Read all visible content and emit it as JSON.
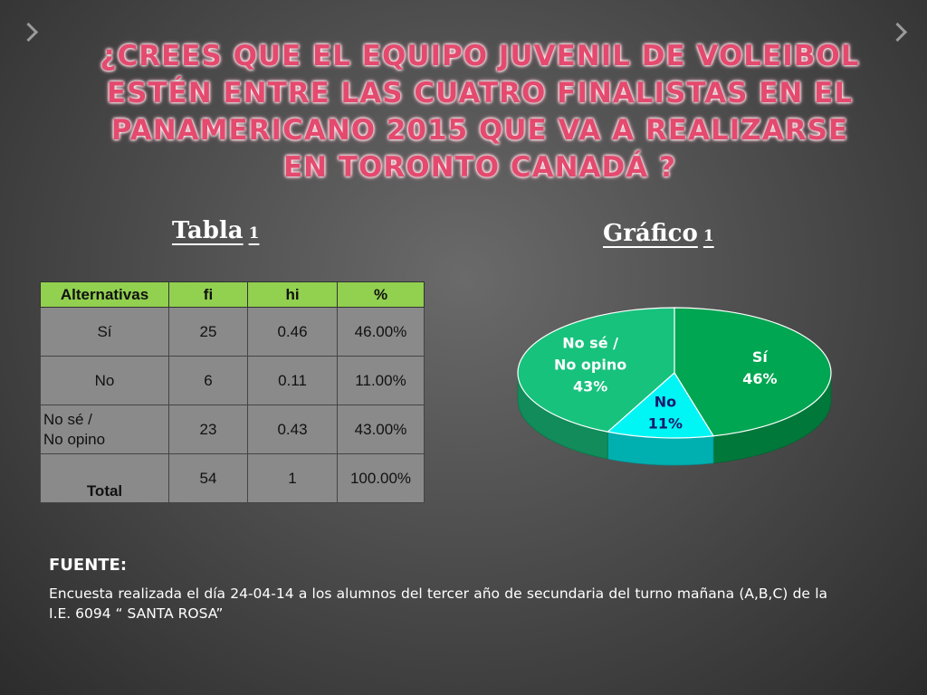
{
  "slide": {
    "title": "¿Crees que el equipo juvenil de voleibol estén entre las cuatro finalistas en el Panamericano 2015 que va a realizarse en Toronto Canadá ?",
    "tabla_label": "Tabla",
    "tabla_num": "1",
    "grafico_label": "Gráfico",
    "grafico_num": "1"
  },
  "table": {
    "headers": [
      "Alternativas",
      "fi",
      "hi",
      "%"
    ],
    "rows": [
      {
        "alternativa": "Sí",
        "fi": "25",
        "hi": "0.46",
        "pct": "46.00%"
      },
      {
        "alternativa": "No",
        "fi": "6",
        "hi": "0.11",
        "pct": "11.00%"
      },
      {
        "alternativa_line1": "No sé /",
        "alternativa_line2": "No opino",
        "fi": "23",
        "hi": "0.43",
        "pct": "43.00%"
      },
      {
        "alternativa": "Total",
        "fi": "54",
        "hi": "1",
        "pct": "100.00%"
      }
    ]
  },
  "chart_data": {
    "type": "pie",
    "categories": [
      "Sí",
      "No",
      "No sé / No opino"
    ],
    "values": [
      46,
      11,
      43
    ],
    "data_labels": [
      {
        "line1": "Sí",
        "line2": "46%"
      },
      {
        "line1": "No",
        "line2": "11%"
      },
      {
        "line1": "No sé /",
        "line2": "No opino",
        "line3": "43%"
      }
    ],
    "colors": [
      "#00a651",
      "#00f5f5",
      "#17c27d"
    ],
    "three_d": true
  },
  "fuente": {
    "label": "FUENTE:",
    "text": "Encuesta realizada el día 24-04-14 a los alumnos del tercer año de secundaria del turno mañana (A,B,C) de la I.E. 6094 “ SANTA ROSA”"
  },
  "colors": {
    "title": "#e44a6e",
    "table_header": "#92d050",
    "table_cell": "#8a8a8a"
  }
}
